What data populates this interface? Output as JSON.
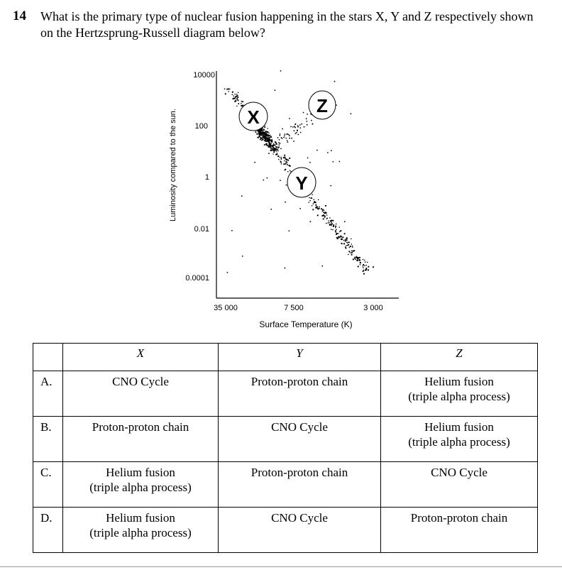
{
  "question": {
    "number": "14",
    "text": "What is the primary type of nuclear fusion happening in the stars X, Y and Z respectively shown on the Hertzsprung-Russell diagram below?"
  },
  "diagram": {
    "ylabel": "Luminosity compared to the sun.",
    "xlabel": "Surface Temperature (K)",
    "y_ticks": [
      "10000",
      "100",
      "1",
      "0.01",
      "0.0001"
    ],
    "x_ticks": [
      "35 000",
      "7 500",
      "3 000"
    ],
    "markers": [
      {
        "label": "X",
        "region": "upper main sequence"
      },
      {
        "label": "Y",
        "region": "lower main sequence"
      },
      {
        "label": "Z",
        "region": "giant branch"
      }
    ]
  },
  "table": {
    "headers": [
      "",
      "X",
      "Y",
      "Z"
    ],
    "rows": [
      {
        "letter": "A.",
        "x": [
          "CNO Cycle"
        ],
        "y": [
          "Proton-proton chain"
        ],
        "z": [
          "Helium fusion",
          "(triple alpha process)"
        ]
      },
      {
        "letter": "B.",
        "x": [
          "Proton-proton chain"
        ],
        "y": [
          "CNO Cycle"
        ],
        "z": [
          "Helium fusion",
          "(triple alpha process)"
        ]
      },
      {
        "letter": "C.",
        "x": [
          "Helium fusion",
          "(triple alpha process)"
        ],
        "y": [
          "Proton-proton chain"
        ],
        "z": [
          "CNO Cycle"
        ]
      },
      {
        "letter": "D.",
        "x": [
          "Helium fusion",
          "(triple alpha process)"
        ],
        "y": [
          "CNO Cycle"
        ],
        "z": [
          "Proton-proton chain"
        ]
      }
    ]
  }
}
